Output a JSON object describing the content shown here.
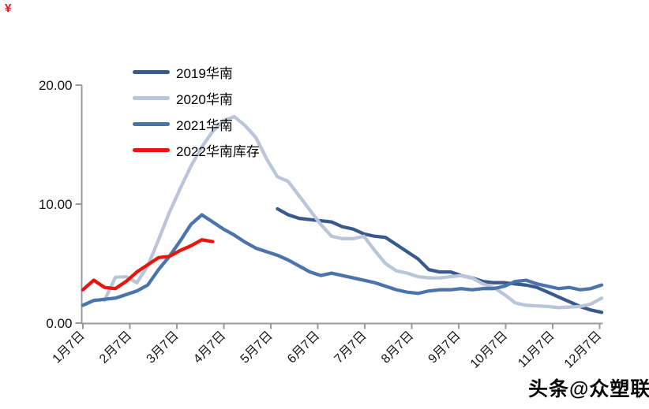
{
  "corner_mark": "¥",
  "watermark": "头条@众塑联",
  "chart_data": {
    "type": "line",
    "title": "",
    "grid": false,
    "legend_position": "inside-top-left",
    "y_axis": {
      "min": 0,
      "max": 20,
      "ticks": [
        {
          "label": "0.00",
          "value": 0
        },
        {
          "label": "10.00",
          "value": 10
        },
        {
          "label": "20.00",
          "value": 20
        }
      ]
    },
    "x_axis": {
      "tick_labels": [
        "1月7日",
        "2月7日",
        "3月7日",
        "4月7日",
        "5月7日",
        "6月7日",
        "7月7日",
        "8月7日",
        "9月7日",
        "10月7日",
        "11月7日",
        "12月7日"
      ],
      "note": "weekly data points, one tick per month on the 7th"
    },
    "series": [
      {
        "name": "2019华南",
        "color": "#3A5A8C",
        "start_week": 18,
        "values": [
          9.6,
          9.1,
          8.8,
          8.7,
          8.6,
          8.5,
          8.1,
          7.9,
          7.5,
          7.3,
          7.2,
          6.6,
          6.0,
          5.4,
          4.5,
          4.3,
          4.3,
          4.0,
          3.8,
          3.5,
          3.4,
          3.4,
          3.3,
          3.2,
          3.0,
          2.6,
          2.2,
          1.8,
          1.4,
          1.1,
          0.9
        ]
      },
      {
        "name": "2020华南",
        "color": "#B9C5D9",
        "start_week": 2,
        "values": [
          1.9,
          3.85,
          3.9,
          3.4,
          4.8,
          7.0,
          9.3,
          11.3,
          13.2,
          14.8,
          16.1,
          17.0,
          17.35,
          16.6,
          15.6,
          13.8,
          12.3,
          11.9,
          10.7,
          9.5,
          8.3,
          7.3,
          7.1,
          7.1,
          7.3,
          6.1,
          5.0,
          4.4,
          4.2,
          3.9,
          3.8,
          3.8,
          3.9,
          4.0,
          3.8,
          3.3,
          3.0,
          2.4,
          1.7,
          1.5,
          1.45,
          1.4,
          1.3,
          1.35,
          1.4,
          1.6,
          2.1
        ]
      },
      {
        "name": "2021华南",
        "color": "#4C74AC",
        "start_week": 0,
        "values": [
          1.5,
          1.9,
          2.0,
          2.1,
          2.4,
          2.7,
          3.2,
          4.5,
          5.6,
          6.9,
          8.3,
          9.1,
          8.5,
          7.9,
          7.4,
          6.8,
          6.3,
          6.0,
          5.7,
          5.3,
          4.8,
          4.3,
          4.0,
          4.2,
          4.0,
          3.8,
          3.6,
          3.4,
          3.1,
          2.8,
          2.6,
          2.5,
          2.7,
          2.8,
          2.8,
          2.9,
          2.8,
          2.9,
          2.9,
          3.1,
          3.5,
          3.6,
          3.3,
          3.1,
          2.9,
          3.0,
          2.8,
          2.9,
          3.2
        ]
      },
      {
        "name": "2022华南库存",
        "color": "#EA150D",
        "start_week": 0,
        "values": [
          2.8,
          3.6,
          3.0,
          2.9,
          3.5,
          4.3,
          4.9,
          5.5,
          5.6,
          6.1,
          6.5,
          7.0,
          6.85
        ]
      }
    ]
  }
}
